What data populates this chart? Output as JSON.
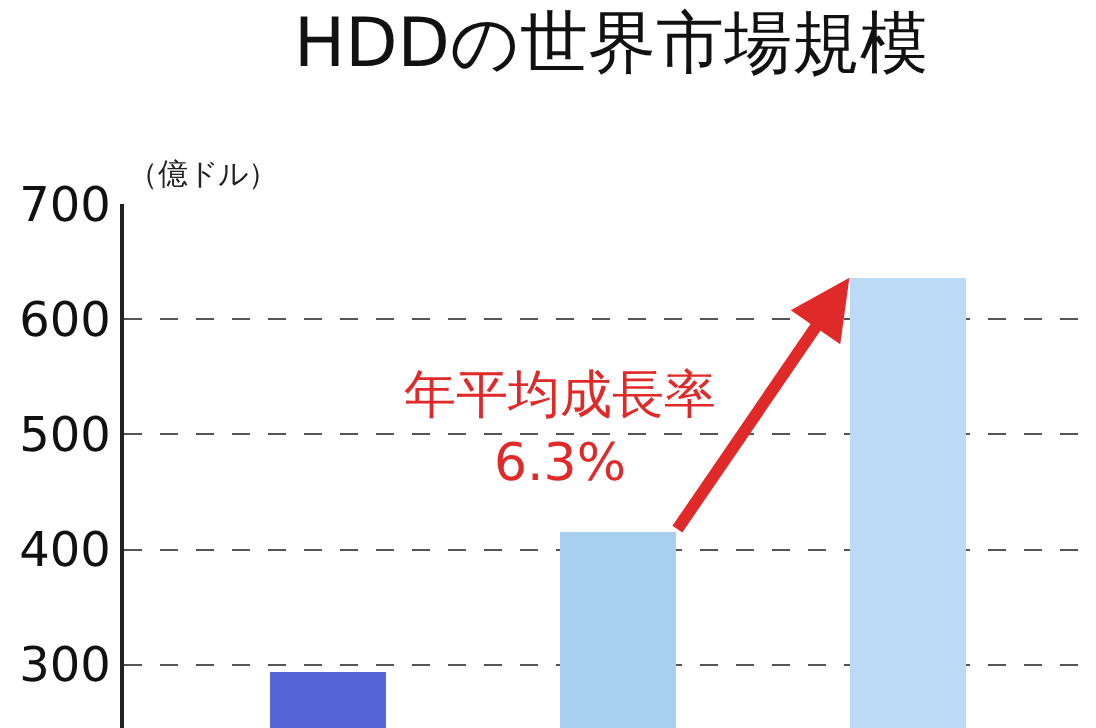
{
  "chart_data": {
    "type": "bar",
    "title": "HDDの世界市場規模",
    "ylabel": "（億ドル）",
    "categories": [
      null,
      null,
      null
    ],
    "values": [
      293,
      415,
      636
    ],
    "colors": [
      "#5566d4",
      "#a9cff0",
      "#bcdaf6"
    ],
    "ylim": [
      245,
      700
    ],
    "yticks": [
      300,
      400,
      500,
      600,
      700
    ],
    "grid": "y",
    "tick_labels": "y",
    "annotations": [
      "年平均成長率\n6.3%"
    ]
  }
}
